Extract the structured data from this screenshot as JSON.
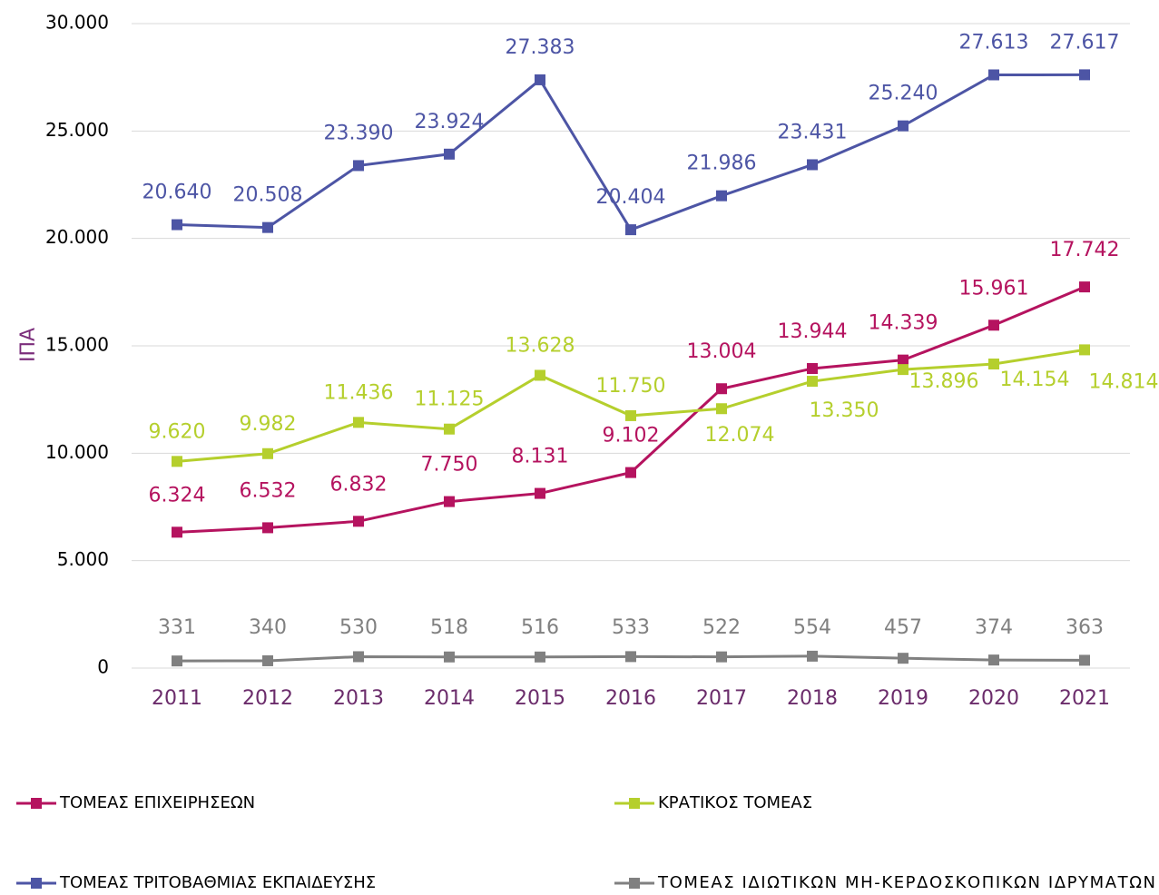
{
  "chart_data": {
    "type": "line",
    "y_label": "ΙΠΑ",
    "categories": [
      "2011",
      "2012",
      "2013",
      "2014",
      "2015",
      "2016",
      "2017",
      "2018",
      "2019",
      "2020",
      "2021"
    ],
    "series": [
      {
        "name": "ΤΟΜΕΑΣ ΕΠΙΧΕΙΡΗΣΕΩΝ",
        "color": "#b5135f",
        "values": [
          6324,
          6532,
          6832,
          7750,
          8131,
          9102,
          13004,
          13944,
          14339,
          15961,
          17742
        ],
        "value_labels": [
          "6.324",
          "6.532",
          "6.832",
          "7.750",
          "8.131",
          "9.102",
          "13.004",
          "13.944",
          "14.339",
          "15.961",
          "17.742"
        ]
      },
      {
        "name": "ΚΡΑΤΙΚΟΣ ΤΟΜΕΑΣ",
        "color": "#b5cf2d",
        "values": [
          9620,
          9982,
          11436,
          11125,
          13628,
          11750,
          12074,
          13350,
          13896,
          14154,
          14814
        ],
        "value_labels": [
          "9.620",
          "9.982",
          "11.436",
          "11.125",
          "13.628",
          "11.750",
          "12.074",
          "13.350",
          "13.896",
          "14.154",
          "14.814"
        ]
      },
      {
        "name": "ΤΟΜΕΑΣ ΤΡΙΤΟΒΑΘΜΙΑΣ ΕΚΠΑΙΔΕΥΣΗΣ",
        "color": "#4d55a5",
        "values": [
          20640,
          20508,
          23390,
          23924,
          27383,
          20404,
          21986,
          23431,
          25240,
          27613,
          27617
        ],
        "value_labels": [
          "20.640",
          "20.508",
          "23.390",
          "23.924",
          "27.383",
          "20.404",
          "21.986",
          "23.431",
          "25.240",
          "27.613",
          "27.617"
        ]
      },
      {
        "name": "ΤΟΜΕΑΣ ΙΔΙΩΤΙΚΩΝ ΜΗ-ΚΕΡΔΟΣΚΟΠΙΚΩΝ ΙΔΡΥΜΑΤΩΝ",
        "color": "#808080",
        "values": [
          331,
          340,
          530,
          518,
          516,
          533,
          522,
          554,
          457,
          374,
          363
        ]
      }
    ],
    "ylim": [
      0,
      30000
    ],
    "yticks": [
      0,
      {
        "value": 5000,
        "label": "5.000"
      },
      {
        "value": 10000,
        "label": "10.000"
      },
      {
        "value": 15000,
        "label": "15.000"
      },
      {
        "value": 20000,
        "label": "20.000"
      },
      {
        "value": 25000,
        "label": "25.000"
      },
      {
        "value": 30000,
        "label": "30.000"
      }
    ],
    "grid": true
  }
}
